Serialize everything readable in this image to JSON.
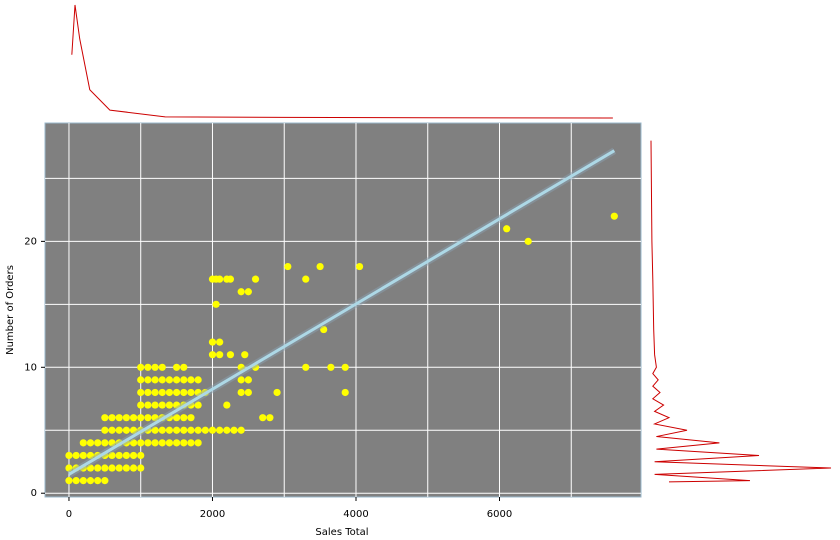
{
  "chart_data": {
    "type": "scatter",
    "x_label": "Sales Total",
    "y_label": "Number of Orders",
    "xlim": [
      -334,
      7972
    ],
    "ylim": [
      -0.3,
      29.4
    ],
    "xticks": [
      0,
      2000,
      4000,
      6000
    ],
    "yticks": [
      0,
      10,
      20
    ],
    "x_minor_grid": [
      1000,
      3000,
      5000,
      7000
    ],
    "y_minor_grid": [
      5,
      15,
      25
    ],
    "grid": true,
    "background": "#808080",
    "series": [
      {
        "color": "#ffff00",
        "x": [
          0,
          100,
          200,
          300,
          400,
          500,
          0,
          100,
          200,
          300,
          400,
          500,
          600,
          700,
          800,
          900,
          1000,
          0,
          100,
          200,
          300,
          400,
          500,
          600,
          700,
          800,
          900,
          1000,
          200,
          300,
          400,
          500,
          600,
          700,
          800,
          900,
          1000,
          1100,
          1200,
          1300,
          1400,
          1500,
          1600,
          1700,
          1800,
          500,
          600,
          700,
          800,
          900,
          1000,
          1100,
          1200,
          1300,
          1400,
          1500,
          1600,
          1700,
          1800,
          1900,
          2000,
          2100,
          2200,
          2300,
          2400,
          500,
          600,
          700,
          800,
          900,
          1000,
          1100,
          1200,
          1300,
          1400,
          1500,
          1600,
          1700,
          2700,
          2800,
          1000,
          1100,
          1200,
          1300,
          1400,
          1500,
          1600,
          1700,
          1800,
          2200,
          1000,
          1100,
          1200,
          1300,
          1400,
          1500,
          1600,
          1700,
          1800,
          1900,
          2400,
          2500,
          2900,
          3850,
          1000,
          1100,
          1200,
          1300,
          1400,
          1500,
          1600,
          1700,
          1800,
          2400,
          2500,
          1000,
          1100,
          1200,
          1300,
          1500,
          1600,
          2400,
          2600,
          3300,
          3650,
          3850,
          2000,
          2100,
          2250,
          2450,
          2000,
          2100,
          3550,
          2050,
          2400,
          2500,
          2000,
          2050,
          2100,
          2200,
          2250,
          2600,
          3300,
          3050,
          3500,
          4050,
          6400,
          6100,
          7600
        ],
        "values": [
          1,
          1,
          1,
          1,
          1,
          1,
          2,
          2,
          2,
          2,
          2,
          2,
          2,
          2,
          2,
          2,
          2,
          3,
          3,
          3,
          3,
          3,
          3,
          3,
          3,
          3,
          3,
          3,
          4,
          4,
          4,
          4,
          4,
          4,
          4,
          4,
          4,
          4,
          4,
          4,
          4,
          4,
          4,
          4,
          4,
          5,
          5,
          5,
          5,
          5,
          5,
          5,
          5,
          5,
          5,
          5,
          5,
          5,
          5,
          5,
          5,
          5,
          5,
          5,
          5,
          6,
          6,
          6,
          6,
          6,
          6,
          6,
          6,
          6,
          6,
          6,
          6,
          6,
          6,
          6,
          7,
          7,
          7,
          7,
          7,
          7,
          7,
          7,
          7,
          7,
          8,
          8,
          8,
          8,
          8,
          8,
          8,
          8,
          8,
          8,
          8,
          8,
          8,
          8,
          9,
          9,
          9,
          9,
          9,
          9,
          9,
          9,
          9,
          9,
          9,
          10,
          10,
          10,
          10,
          10,
          10,
          10,
          10,
          10,
          10,
          10,
          11,
          11,
          11,
          11,
          12,
          12,
          13,
          15,
          16,
          16,
          17,
          17,
          17,
          17,
          17,
          17,
          17,
          18,
          18,
          18,
          20,
          21,
          22
        ]
      }
    ],
    "fit": {
      "color": "#add8e6",
      "x": [
        0,
        7600
      ],
      "values": [
        1.5,
        27.2
      ]
    },
    "x_density": {
      "color": "#cc0000",
      "x": [
        40,
        84,
        150,
        290,
        570,
        1340,
        3000,
        5000,
        7580
      ],
      "values": [
        0.56,
        1.0,
        0.7,
        0.25,
        0.07,
        0.01,
        0.005,
        0.002,
        0
      ]
    },
    "y_density": {
      "color": "#cc0000",
      "y": [
        0.9,
        1,
        1.5,
        2,
        2.5,
        3,
        3.5,
        4,
        4.5,
        5,
        5.5,
        6,
        6.5,
        7,
        7.5,
        8,
        8.5,
        9,
        9.5,
        10,
        11,
        13,
        17,
        20,
        28
      ],
      "values": [
        0.1,
        0.55,
        0.02,
        1.0,
        0.02,
        0.6,
        0.03,
        0.38,
        0.03,
        0.2,
        0.02,
        0.1,
        0.02,
        0.07,
        0.01,
        0.05,
        0.01,
        0.04,
        0.01,
        0.03,
        0.02,
        0.015,
        0.01,
        0.005,
        0
      ]
    }
  }
}
